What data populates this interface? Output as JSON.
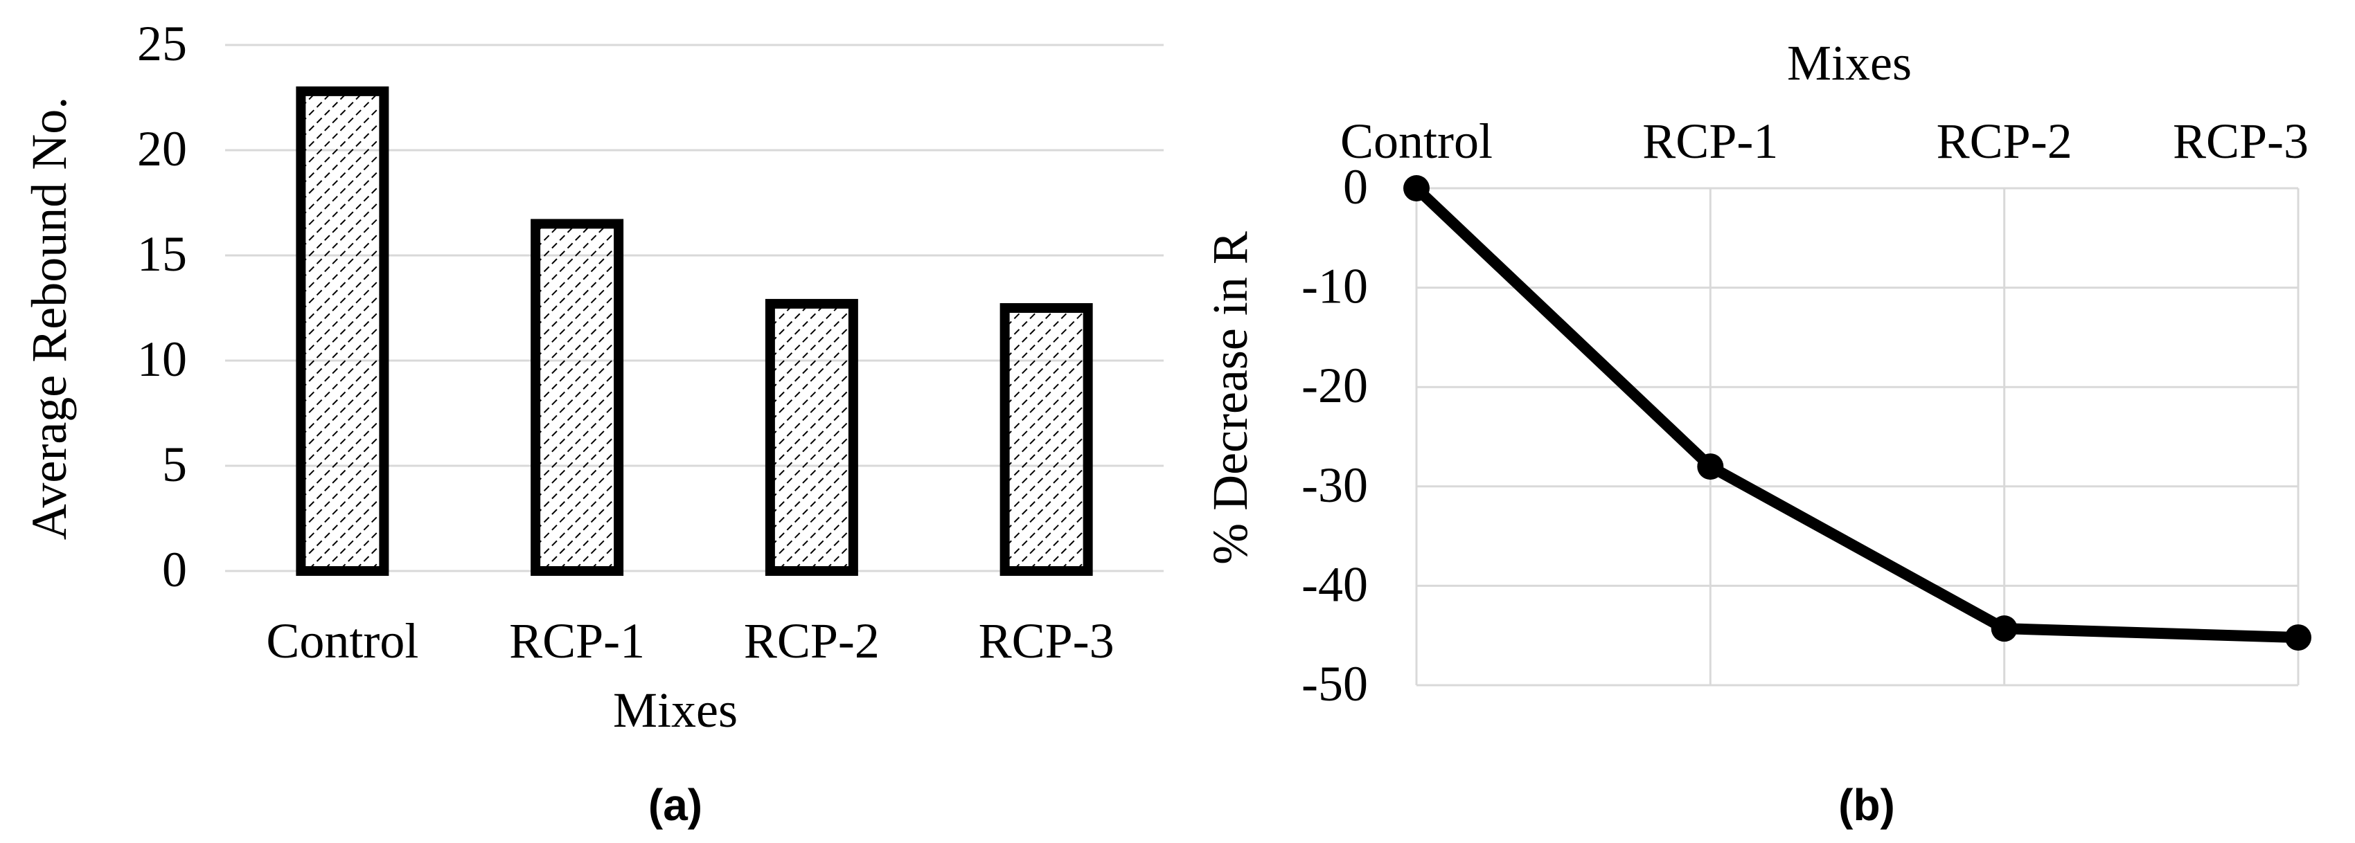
{
  "figure": {
    "panel_a_label": "(a)",
    "panel_b_label": "(b)"
  },
  "chart_data": [
    {
      "type": "bar",
      "title": "",
      "categories": [
        "Control",
        "RCP-1",
        "RCP-2",
        "RCP-3"
      ],
      "values": [
        22.8,
        16.5,
        12.7,
        12.5
      ],
      "xlabel": "Mixes",
      "ylabel": "Average Rebound No.",
      "ylim": [
        0,
        25
      ],
      "yticks": [
        0,
        5,
        10,
        15,
        20,
        25
      ],
      "grid": true,
      "fill": "hatched",
      "colors": {
        "bar_edge": "#000000",
        "bar_hatch": "#000000",
        "grid": "#d9d9d9"
      }
    },
    {
      "type": "line",
      "title": "",
      "categories": [
        "Control",
        "RCP-1",
        "RCP-2",
        "RCP-3"
      ],
      "values": [
        0,
        -28,
        -44.3,
        -45.2
      ],
      "xlabel": "Mixes",
      "xaxis_position": "top",
      "ylabel": "% Decrease in R",
      "ylim": [
        -50,
        0
      ],
      "yticks": [
        0,
        -10,
        -20,
        -30,
        -40,
        -50
      ],
      "grid": true,
      "markers": true,
      "colors": {
        "line": "#000000",
        "marker": "#000000",
        "grid": "#d9d9d9"
      }
    }
  ]
}
